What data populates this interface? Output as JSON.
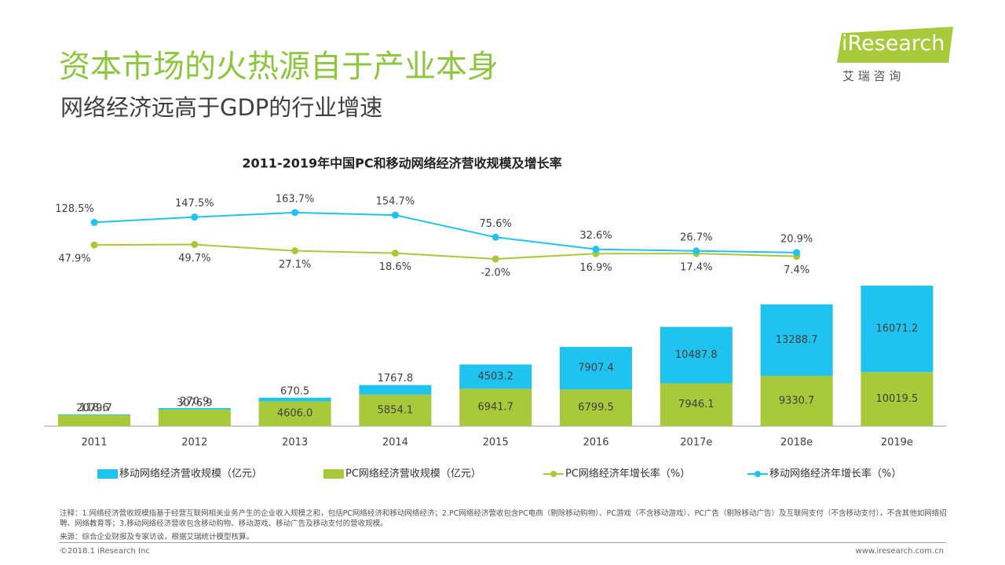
{
  "header": {
    "title": "资本市场的火热源自于产业本身",
    "subtitle": "网络经济远高于GDP的行业增速",
    "logo": "iResearch",
    "logo_cn": "艾 瑞 咨 询"
  },
  "chart_data": {
    "type": "bar",
    "stacked": true,
    "title": "2011-2019年中国PC和移动网络经济营收规模及增长率",
    "categories": [
      "2011",
      "2012",
      "2013",
      "2014",
      "2015",
      "2016",
      "2017e",
      "2018e",
      "2019e"
    ],
    "series": [
      {
        "name": "PC网络经济营收规模（亿元）",
        "type": "bar",
        "color": "#a7c93a",
        "values": [
          2079.7,
          3076.9,
          4606.0,
          5854.1,
          6941.7,
          6799.5,
          7946.1,
          9330.7,
          10019.5
        ],
        "value_labels": [
          "2079.7",
          "3076.9",
          "4606.0",
          "5854.1",
          "6941.7",
          "6799.5",
          "7946.1",
          "9330.7",
          "10019.5"
        ]
      },
      {
        "name": "移动网络经济营收规模（亿元）",
        "type": "bar",
        "color": "#20c3ef",
        "values": [
          118.6,
          270.9,
          670.5,
          1767.8,
          4503.2,
          7907.4,
          10487.8,
          13288.7,
          16071.2
        ],
        "value_labels": [
          "118.6",
          "270.9",
          "670.5",
          "1767.8",
          "4503.2",
          "7907.4",
          "10487.8",
          "13288.7",
          "16071.2"
        ]
      },
      {
        "name": "PC网络经济年增长率（%）",
        "type": "line",
        "color": "#a7c93a",
        "values": [
          47.9,
          49.7,
          27.1,
          18.6,
          -2.0,
          16.9,
          17.4,
          7.4,
          null
        ],
        "value_labels": [
          "47.9%",
          "49.7%",
          "27.1%",
          "18.6%",
          "-2.0%",
          "16.9%",
          "17.4%",
          "7.4%",
          null
        ]
      },
      {
        "name": "移动网络经济年增长率（%）",
        "type": "line",
        "color": "#20c3ef",
        "values": [
          128.5,
          147.5,
          163.7,
          154.7,
          75.6,
          32.6,
          26.7,
          20.9,
          null
        ],
        "value_labels": [
          "128.5%",
          "147.5%",
          "163.7%",
          "154.7%",
          "75.6%",
          "32.6%",
          "26.7%",
          "20.9%",
          null
        ]
      }
    ],
    "legend": "bottom"
  },
  "footer": {
    "note": "注释：1.网络经济营收规模指基于经营互联网相关业务产生的企业收入规模之和，包括PC网络经济和移动网络经济；2.PC网络经济营收包含PC电商（剔除移动购物）、PC游戏（不含移动游戏）、PC广告（剔除移动广告）及互联网支付（不含移动支付），不含其他如网络招聘、网络教育等；3.移动网络经济营收包含移动购物、移动游戏、移动广告及移动支付的营收规模。",
    "source": "来源：综合企业财报及专家访谈，根据艾瑞统计模型核算。",
    "copyright": "©2018.1 iResearch Inc",
    "url": "www.iresearch.com.cn"
  }
}
